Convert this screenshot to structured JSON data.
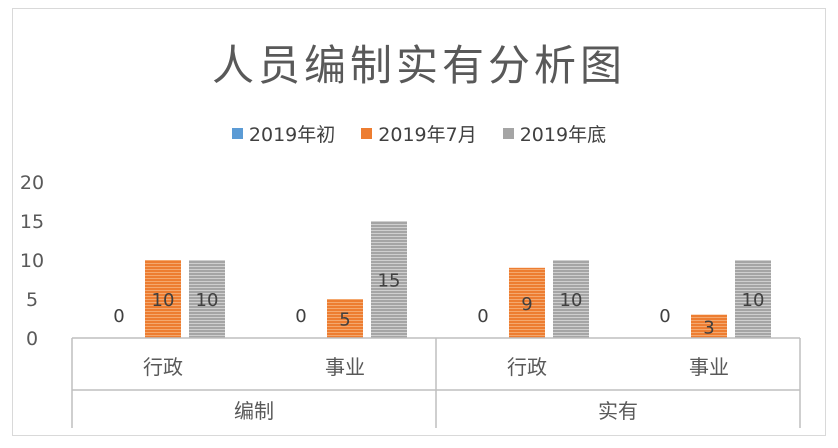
{
  "chart_data": {
    "type": "bar",
    "title": "人员编制实有分析图",
    "groups": [
      {
        "label": "编制",
        "categories": [
          "行政",
          "事业"
        ]
      },
      {
        "label": "实有",
        "categories": [
          "行政",
          "事业"
        ]
      }
    ],
    "categories": [
      "行政",
      "事业",
      "行政",
      "事业"
    ],
    "series": [
      {
        "name": "2019年初",
        "color": "#5b9bd5",
        "values": [
          0,
          0,
          0,
          0
        ]
      },
      {
        "name": "2019年7月",
        "color": "#ed7d31",
        "values": [
          10,
          5,
          9,
          3
        ]
      },
      {
        "name": "2019年底",
        "color": "#a5a5a5",
        "values": [
          10,
          15,
          10,
          10
        ]
      }
    ],
    "yticks": [
      "0",
      "5",
      "10",
      "15",
      "20"
    ],
    "ylim": [
      0,
      20
    ],
    "legend_position": "top",
    "grid": false,
    "xlabel": "",
    "ylabel": ""
  }
}
